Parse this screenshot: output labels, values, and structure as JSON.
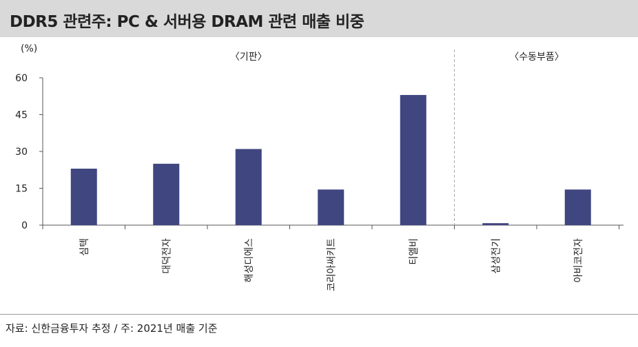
{
  "header": {
    "title": "DDR5 관련주: PC & 서버용 DRAM 관련 매출 비중"
  },
  "chart_data": {
    "type": "bar",
    "unit_label": "(%)",
    "groups": [
      {
        "label": "〈기판〉",
        "categories": [
          "심텍",
          "대덕전자",
          "해성디에스",
          "코리아써키트",
          "티엘비"
        ]
      },
      {
        "label": "〈수동부품〉",
        "categories": [
          "삼성전기",
          "아비코전자"
        ]
      }
    ],
    "categories": [
      "심텍",
      "대덕전자",
      "해성디에스",
      "코리아써키트",
      "티엘비",
      "삼성전기",
      "아비코전자"
    ],
    "values": [
      23,
      25,
      31,
      14.5,
      53,
      0.8,
      14.5
    ],
    "ylim": [
      0,
      60
    ],
    "yticks": [
      0,
      15,
      30,
      45,
      60
    ],
    "bar_color": "#3f4680",
    "grid": false
  },
  "footer": {
    "source": "자료: 신한금융투자 추정   /   주: 2021년 매출 기준"
  }
}
